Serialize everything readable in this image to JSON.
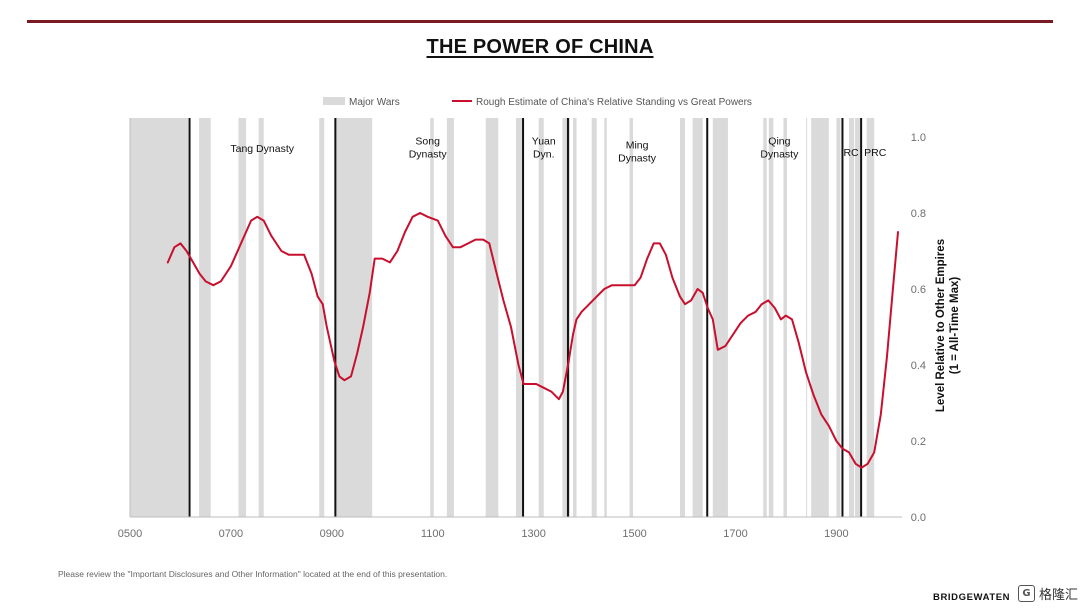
{
  "slide": {
    "title": "THE POWER OF CHINA",
    "disclaimer": "Please review the \"Important Disclosures and Other Information\" located at the end of this presentation.",
    "brand": "BRIDGEWATEN",
    "watermark_text": "格隆汇",
    "watermark_logo": "G"
  },
  "colors": {
    "accent_rule": "#7a1a22",
    "line": "#c8102e",
    "war_band": "#dadada",
    "divider": "#111111"
  },
  "chart_data": {
    "type": "line",
    "title": "",
    "xlabel": "",
    "ylabel": "Level Relative to Other Empires",
    "ylabel_sub": "(1 = All-Time Max)",
    "xlim": [
      500,
      2030
    ],
    "ylim": [
      0.0,
      1.05
    ],
    "x_ticks": [
      {
        "value": 500,
        "label": "0500"
      },
      {
        "value": 700,
        "label": "0700"
      },
      {
        "value": 900,
        "label": "0900"
      },
      {
        "value": 1100,
        "label": "1100"
      },
      {
        "value": 1300,
        "label": "1300"
      },
      {
        "value": 1500,
        "label": "1500"
      },
      {
        "value": 1700,
        "label": "1700"
      },
      {
        "value": 1900,
        "label": "1900"
      }
    ],
    "y_ticks": [
      {
        "value": 0.0,
        "label": "0.0"
      },
      {
        "value": 0.2,
        "label": "0.2"
      },
      {
        "value": 0.4,
        "label": "0.4"
      },
      {
        "value": 0.6,
        "label": "0.6"
      },
      {
        "value": 0.8,
        "label": "0.8"
      },
      {
        "value": 1.0,
        "label": "1.0"
      }
    ],
    "y_axis_side": "right",
    "grid": false,
    "legend_placement": "top-center",
    "legend": [
      {
        "label": "Major Wars",
        "kind": "band"
      },
      {
        "label": "Rough Estimate of China's Relative Standing vs Great Powers",
        "kind": "line"
      }
    ],
    "war_bands": [
      [
        500,
        615
      ],
      [
        637,
        660
      ],
      [
        715,
        730
      ],
      [
        755,
        765
      ],
      [
        875,
        885
      ],
      [
        907,
        980
      ],
      [
        1095,
        1102
      ],
      [
        1128,
        1142
      ],
      [
        1205,
        1230
      ],
      [
        1265,
        1280
      ],
      [
        1310,
        1320
      ],
      [
        1357,
        1372
      ],
      [
        1378,
        1385
      ],
      [
        1415,
        1425
      ],
      [
        1440,
        1445
      ],
      [
        1490,
        1497
      ],
      [
        1590,
        1600
      ],
      [
        1615,
        1635
      ],
      [
        1655,
        1685
      ],
      [
        1755,
        1762
      ],
      [
        1766,
        1775
      ],
      [
        1795,
        1802
      ],
      [
        1840,
        1842
      ],
      [
        1850,
        1885
      ],
      [
        1900,
        1908
      ],
      [
        1925,
        1935
      ],
      [
        1937,
        1950
      ],
      [
        1960,
        1975
      ]
    ],
    "dynasty_dividers": [
      618,
      907,
      1279,
      1368,
      1644,
      1912,
      1949
    ],
    "dynasty_labels": [
      {
        "text": "Tang Dynasty",
        "x": 762,
        "y": 0.96
      },
      {
        "text": "Song\nDynasty",
        "x": 1090,
        "y": 0.98
      },
      {
        "text": "Yuan\nDyn.",
        "x": 1320,
        "y": 0.98
      },
      {
        "text": "Ming\nDynasty",
        "x": 1505,
        "y": 0.97
      },
      {
        "text": "Qing\nDynasty",
        "x": 1787,
        "y": 0.98
      },
      {
        "text": "RC",
        "x": 1929,
        "y": 0.95
      },
      {
        "text": "PRC",
        "x": 1977,
        "y": 0.95
      }
    ],
    "series": [
      {
        "name": "Rough Estimate of China's Relative Standing vs Great Powers",
        "x": [
          575,
          588,
          600,
          612,
          625,
          638,
          650,
          665,
          680,
          700,
          720,
          740,
          752,
          765,
          780,
          800,
          815,
          830,
          845,
          860,
          872,
          882,
          890,
          905,
          915,
          925,
          938,
          950,
          962,
          975,
          985,
          1000,
          1015,
          1030,
          1045,
          1060,
          1075,
          1090,
          1110,
          1125,
          1140,
          1155,
          1170,
          1185,
          1200,
          1212,
          1225,
          1240,
          1255,
          1270,
          1280,
          1290,
          1305,
          1320,
          1335,
          1350,
          1358,
          1368,
          1378,
          1385,
          1395,
          1410,
          1425,
          1440,
          1455,
          1470,
          1485,
          1500,
          1512,
          1525,
          1538,
          1550,
          1562,
          1575,
          1590,
          1600,
          1612,
          1625,
          1635,
          1645,
          1655,
          1665,
          1680,
          1695,
          1710,
          1725,
          1740,
          1752,
          1765,
          1778,
          1790,
          1800,
          1812,
          1825,
          1840,
          1855,
          1870,
          1885,
          1900,
          1912,
          1925,
          1938,
          1950,
          1962,
          1975,
          1988,
          2000,
          2012,
          2022
        ],
        "values": [
          0.67,
          0.71,
          0.72,
          0.7,
          0.67,
          0.64,
          0.62,
          0.61,
          0.62,
          0.66,
          0.72,
          0.78,
          0.79,
          0.78,
          0.74,
          0.7,
          0.69,
          0.69,
          0.69,
          0.64,
          0.58,
          0.56,
          0.5,
          0.41,
          0.37,
          0.36,
          0.37,
          0.43,
          0.5,
          0.59,
          0.68,
          0.68,
          0.67,
          0.7,
          0.75,
          0.79,
          0.8,
          0.79,
          0.78,
          0.74,
          0.71,
          0.71,
          0.72,
          0.73,
          0.73,
          0.72,
          0.65,
          0.57,
          0.5,
          0.4,
          0.35,
          0.35,
          0.35,
          0.34,
          0.33,
          0.31,
          0.33,
          0.4,
          0.48,
          0.52,
          0.54,
          0.56,
          0.58,
          0.6,
          0.61,
          0.61,
          0.61,
          0.61,
          0.63,
          0.68,
          0.72,
          0.72,
          0.69,
          0.63,
          0.58,
          0.56,
          0.57,
          0.6,
          0.59,
          0.55,
          0.52,
          0.44,
          0.45,
          0.48,
          0.51,
          0.53,
          0.54,
          0.56,
          0.57,
          0.55,
          0.52,
          0.53,
          0.52,
          0.46,
          0.38,
          0.32,
          0.27,
          0.24,
          0.2,
          0.18,
          0.17,
          0.14,
          0.13,
          0.14,
          0.17,
          0.27,
          0.42,
          0.6,
          0.75
        ]
      }
    ]
  }
}
